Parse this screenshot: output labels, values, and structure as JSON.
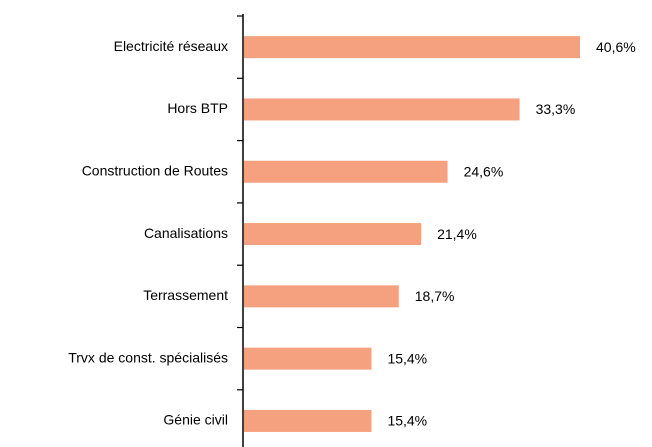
{
  "chart_data": {
    "type": "hbar",
    "categories": [
      "Electricité réseaux",
      "Hors BTP",
      "Construction de Routes",
      "Canalisations",
      "Terrassement",
      "Trvx de const. spécialisés",
      "Génie civil"
    ],
    "values": [
      40.6,
      33.3,
      24.6,
      21.4,
      18.7,
      15.4,
      15.4
    ],
    "value_labels": [
      "40,6%",
      "33,3%",
      "24,6%",
      "21,4%",
      "18,7%",
      "15,4%",
      "15,4%"
    ],
    "color": "#f5a07e"
  }
}
